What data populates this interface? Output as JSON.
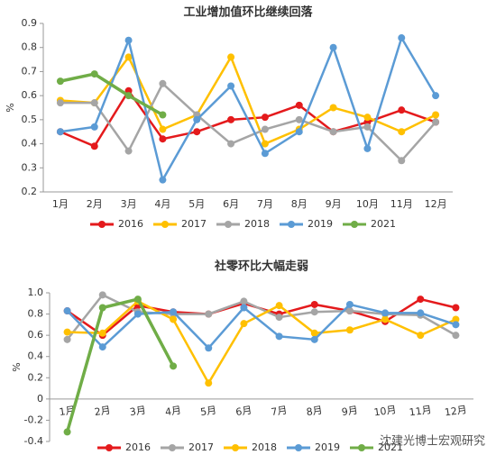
{
  "chart_data": [
    {
      "type": "line",
      "title": "工业增加值环比继续回落",
      "y_label": "%",
      "categories": [
        "1月",
        "2月",
        "3月",
        "4月",
        "5月",
        "6月",
        "7月",
        "8月",
        "9月",
        "10月",
        "11月",
        "12月"
      ],
      "ylim": [
        0.2,
        0.9
      ],
      "yticks": [
        0.2,
        0.3,
        0.4,
        0.5,
        0.6,
        0.7,
        0.8,
        0.9
      ],
      "grid": false,
      "series": [
        {
          "name": "2016",
          "color": "#e41a1c",
          "values": [
            0.45,
            0.39,
            0.62,
            0.42,
            0.45,
            0.5,
            0.51,
            0.56,
            0.45,
            0.49,
            0.54,
            0.49
          ]
        },
        {
          "name": "2017",
          "color": "#ffc000",
          "values": [
            0.58,
            0.57,
            0.76,
            0.46,
            0.52,
            0.76,
            0.4,
            0.46,
            0.55,
            0.51,
            0.45,
            0.52
          ]
        },
        {
          "name": "2018",
          "color": "#a5a5a5",
          "values": [
            0.57,
            0.57,
            0.37,
            0.65,
            0.52,
            0.4,
            0.46,
            0.5,
            0.45,
            0.47,
            0.33,
            0.49
          ]
        },
        {
          "name": "2019",
          "color": "#5b9bd5",
          "values": [
            0.45,
            0.47,
            0.83,
            0.25,
            0.5,
            0.64,
            0.36,
            0.45,
            0.8,
            0.38,
            0.84,
            0.6
          ]
        },
        {
          "name": "2021",
          "color": "#70ad47",
          "values": [
            0.66,
            0.69,
            0.6,
            0.52,
            null,
            null,
            null,
            null,
            null,
            null,
            null,
            null
          ]
        }
      ]
    },
    {
      "type": "line",
      "title": "社零环比大幅走弱",
      "y_label": "%",
      "categories": [
        "1月",
        "2月",
        "3月",
        "4月",
        "5月",
        "6月",
        "7月",
        "8月",
        "9月",
        "10月",
        "11月",
        "12月"
      ],
      "ylim": [
        -0.4,
        1.0
      ],
      "yticks": [
        -0.4,
        -0.2,
        0,
        0.2,
        0.4,
        0.6,
        0.8,
        {
          "value": 1.0,
          "label": "1.0"
        }
      ],
      "grid": false,
      "watermark": "沈建光博士宏观研究",
      "series": [
        {
          "name": "2016",
          "color": "#e41a1c",
          "values": [
            0.83,
            0.6,
            0.88,
            0.82,
            0.8,
            0.9,
            0.8,
            0.89,
            0.83,
            0.73,
            0.94,
            0.86
          ]
        },
        {
          "name": "2017",
          "color": "#a5a5a5",
          "values": [
            0.56,
            0.98,
            0.82,
            0.8,
            0.8,
            0.92,
            0.77,
            0.82,
            0.83,
            0.8,
            0.79,
            0.6
          ]
        },
        {
          "name": "2018",
          "color": "#ffc000",
          "values": [
            0.63,
            0.62,
            0.92,
            0.75,
            0.15,
            0.71,
            0.88,
            0.62,
            0.65,
            0.75,
            0.6,
            0.75
          ]
        },
        {
          "name": "2019",
          "color": "#5b9bd5",
          "values": [
            0.83,
            0.49,
            0.8,
            0.82,
            0.48,
            0.86,
            0.59,
            0.56,
            0.89,
            0.81,
            0.81,
            0.7
          ]
        },
        {
          "name": "2021",
          "color": "#70ad47",
          "values": [
            -0.31,
            0.86,
            0.94,
            0.31,
            null,
            null,
            null,
            null,
            null,
            null,
            null,
            null
          ]
        }
      ]
    }
  ]
}
